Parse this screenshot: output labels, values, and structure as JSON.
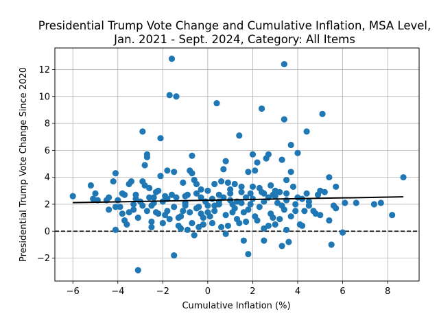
{
  "chart_data": {
    "type": "scatter",
    "title_lines": [
      "Presidential Trump Vote Change and Cumulative Inflation, MSA Level,",
      "Jan. 2021 - Sept. 2024, Category: All Items"
    ],
    "xlabel": "Cumulative Inflation (%)",
    "ylabel": "Presidential Trump Vote Change Since 2020",
    "xlim": [
      -6.8,
      9.4
    ],
    "ylim": [
      -3.7,
      13.6
    ],
    "x_ticks": [
      -6,
      -4,
      -2,
      0,
      2,
      4,
      6,
      8
    ],
    "x_tick_labels": [
      "−6",
      "−4",
      "−2",
      "0",
      "2",
      "4",
      "6",
      "8"
    ],
    "y_ticks": [
      -2,
      0,
      2,
      4,
      6,
      8,
      10,
      12
    ],
    "y_tick_labels": [
      "−2",
      "0",
      "2",
      "4",
      "6",
      "8",
      "10",
      "12"
    ],
    "grid": true,
    "point_color": "#1f77b4",
    "trend_line": {
      "x": [
        -6.0,
        8.7
      ],
      "y": [
        2.12,
        2.55
      ],
      "color": "#000000"
    },
    "reference_line": {
      "y": 0,
      "style": "dashed",
      "color": "#000000"
    },
    "points": [
      [
        -6.0,
        2.6
      ],
      [
        -5.2,
        3.4
      ],
      [
        -5.1,
        2.4
      ],
      [
        -5.0,
        2.8
      ],
      [
        -4.9,
        2.3
      ],
      [
        -4.5,
        2.3
      ],
      [
        -4.4,
        1.6
      ],
      [
        -4.4,
        2.5
      ],
      [
        -4.2,
        3.7
      ],
      [
        -4.1,
        4.3
      ],
      [
        -4.1,
        1.8
      ],
      [
        -4.1,
        0.1
      ],
      [
        -3.9,
        1.8
      ],
      [
        -3.8,
        2.8
      ],
      [
        -3.7,
        2.7
      ],
      [
        -3.7,
        0.8
      ],
      [
        -3.6,
        0.5
      ],
      [
        -3.5,
        3.5
      ],
      [
        -3.4,
        3.7
      ],
      [
        -3.3,
        1.6
      ],
      [
        -3.2,
        2.4
      ],
      [
        -3.2,
        2.7
      ],
      [
        -3.1,
        1.0
      ],
      [
        -3.1,
        -2.9
      ],
      [
        -2.9,
        3.7
      ],
      [
        -2.9,
        7.4
      ],
      [
        -2.9,
        1.9
      ],
      [
        -2.8,
        3.4
      ],
      [
        -2.8,
        4.9
      ],
      [
        -2.7,
        5.7
      ],
      [
        -2.7,
        5.5
      ],
      [
        -2.6,
        2.5
      ],
      [
        -2.6,
        3.2
      ],
      [
        -2.5,
        0.7
      ],
      [
        -2.5,
        0.3
      ],
      [
        -2.4,
        2.5
      ],
      [
        -2.3,
        1.4
      ],
      [
        -2.2,
        3.0
      ],
      [
        -2.1,
        4.1
      ],
      [
        -2.1,
        6.9
      ],
      [
        -2.0,
        0.6
      ],
      [
        -1.9,
        1.2
      ],
      [
        -1.8,
        4.5
      ],
      [
        -1.8,
        1.5
      ],
      [
        -1.7,
        10.1
      ],
      [
        -1.6,
        12.8
      ],
      [
        -1.6,
        2.7
      ],
      [
        -1.5,
        4.4
      ],
      [
        -1.5,
        -1.8
      ],
      [
        -1.4,
        10.0
      ],
      [
        -1.4,
        2.5
      ],
      [
        -1.3,
        1.0
      ],
      [
        -1.2,
        0.2
      ],
      [
        -1.1,
        3.6
      ],
      [
        -1.0,
        1.9
      ],
      [
        -0.9,
        2.7
      ],
      [
        -0.8,
        1.4
      ],
      [
        -0.8,
        4.5
      ],
      [
        -0.7,
        5.6
      ],
      [
        -0.7,
        4.3
      ],
      [
        -0.6,
        3.8
      ],
      [
        -0.5,
        3.5
      ],
      [
        -0.4,
        1.8
      ],
      [
        -0.3,
        1.3
      ],
      [
        -0.3,
        3.1
      ],
      [
        -0.2,
        0.5
      ],
      [
        -0.1,
        2.2
      ],
      [
        0.0,
        1.4
      ],
      [
        0.1,
        1.1
      ],
      [
        0.2,
        2.4
      ],
      [
        0.3,
        1.9
      ],
      [
        0.3,
        3.5
      ],
      [
        0.4,
        9.5
      ],
      [
        0.5,
        2.2
      ],
      [
        0.6,
        3.7
      ],
      [
        0.6,
        0.3
      ],
      [
        0.7,
        4.6
      ],
      [
        0.8,
        5.2
      ],
      [
        0.8,
        -0.2
      ],
      [
        0.9,
        3.6
      ],
      [
        1.0,
        2.8
      ],
      [
        1.1,
        1.4
      ],
      [
        1.2,
        3.5
      ],
      [
        1.3,
        2.2
      ],
      [
        1.4,
        7.1
      ],
      [
        1.4,
        0.6
      ],
      [
        1.5,
        3.3
      ],
      [
        1.6,
        -0.7
      ],
      [
        1.7,
        0.7
      ],
      [
        1.7,
        2.5
      ],
      [
        1.8,
        4.4
      ],
      [
        1.8,
        -1.7
      ],
      [
        1.9,
        2.0
      ],
      [
        2.0,
        5.7
      ],
      [
        2.1,
        4.5
      ],
      [
        2.1,
        1.1
      ],
      [
        2.2,
        5.1
      ],
      [
        2.3,
        3.2
      ],
      [
        2.4,
        9.1
      ],
      [
        2.5,
        0.2
      ],
      [
        2.5,
        -0.7
      ],
      [
        2.6,
        5.4
      ],
      [
        2.7,
        5.7
      ],
      [
        2.7,
        2.5
      ],
      [
        2.8,
        3.4
      ],
      [
        2.9,
        1.0
      ],
      [
        3.0,
        0.5
      ],
      [
        3.1,
        2.1
      ],
      [
        3.2,
        2.9
      ],
      [
        3.3,
        5.3
      ],
      [
        3.3,
        -1.1
      ],
      [
        3.4,
        8.3
      ],
      [
        3.4,
        12.4
      ],
      [
        3.5,
        0.1
      ],
      [
        3.5,
        3.8
      ],
      [
        3.6,
        -0.8
      ],
      [
        3.7,
        4.4
      ],
      [
        3.7,
        6.4
      ],
      [
        3.8,
        3.3
      ],
      [
        3.9,
        1.5
      ],
      [
        4.0,
        5.8
      ],
      [
        4.1,
        0.5
      ],
      [
        4.2,
        0.4
      ],
      [
        4.3,
        1.5
      ],
      [
        4.4,
        7.4
      ],
      [
        4.4,
        2.8
      ],
      [
        4.5,
        2.2
      ],
      [
        4.7,
        1.5
      ],
      [
        4.9,
        2.7
      ],
      [
        5.0,
        3.0
      ],
      [
        5.0,
        1.2
      ],
      [
        5.1,
        8.7
      ],
      [
        5.2,
        2.9
      ],
      [
        5.4,
        4.0
      ],
      [
        5.4,
        0.8
      ],
      [
        5.5,
        -1.0
      ],
      [
        5.6,
        1.9
      ],
      [
        5.7,
        3.3
      ],
      [
        5.7,
        1.7
      ],
      [
        6.0,
        -0.1
      ],
      [
        6.1,
        2.1
      ],
      [
        6.6,
        2.1
      ],
      [
        7.4,
        2.0
      ],
      [
        7.7,
        2.1
      ],
      [
        8.2,
        1.2
      ],
      [
        8.7,
        4.0
      ],
      [
        -1.0,
        2.1
      ],
      [
        -0.5,
        1.7
      ],
      [
        0.0,
        1.9
      ],
      [
        0.5,
        2.0
      ],
      [
        1.0,
        2.3
      ],
      [
        1.5,
        2.1
      ],
      [
        2.0,
        2.4
      ],
      [
        2.5,
        2.2
      ],
      [
        3.0,
        2.6
      ],
      [
        3.5,
        2.3
      ],
      [
        -1.2,
        1.1
      ],
      [
        -0.7,
        0.6
      ],
      [
        -0.2,
        1.0
      ],
      [
        0.8,
        1.2
      ],
      [
        1.3,
        0.9
      ],
      [
        1.8,
        1.6
      ],
      [
        2.3,
        1.8
      ],
      [
        2.8,
        1.3
      ],
      [
        3.3,
        1.9
      ],
      [
        4.0,
        2.5
      ],
      [
        -2.5,
        1.9
      ],
      [
        -2.0,
        2.2
      ],
      [
        -1.5,
        1.8
      ],
      [
        -1.0,
        2.6
      ],
      [
        -0.5,
        2.8
      ],
      [
        0.0,
        3.0
      ],
      [
        0.5,
        2.7
      ],
      [
        1.0,
        3.1
      ],
      [
        1.5,
        2.9
      ],
      [
        2.0,
        3.3
      ],
      [
        2.5,
        2.8
      ],
      [
        3.0,
        3.0
      ],
      [
        3.5,
        2.8
      ],
      [
        4.5,
        1.9
      ],
      [
        -3.0,
        2.2
      ],
      [
        -2.7,
        1.5
      ],
      [
        -2.2,
        1.3
      ],
      [
        -1.7,
        0.9
      ],
      [
        -1.3,
        0.4
      ],
      [
        -0.9,
        0.1
      ],
      [
        -0.6,
        -0.3
      ],
      [
        -0.4,
        0.3
      ],
      [
        0.2,
        0.6
      ],
      [
        0.9,
        0.4
      ],
      [
        1.2,
        1.7
      ],
      [
        1.6,
        1.4
      ],
      [
        2.2,
        0.8
      ],
      [
        2.7,
        0.4
      ],
      [
        3.2,
        0.9
      ],
      [
        3.7,
        1.1
      ],
      [
        -3.5,
        1.4
      ],
      [
        -3.3,
        2.0
      ],
      [
        -2.3,
        2.9
      ],
      [
        -1.9,
        2.6
      ],
      [
        -1.1,
        1.5
      ],
      [
        -0.3,
        2.5
      ],
      [
        0.3,
        1.5
      ],
      [
        0.7,
        2.5
      ],
      [
        1.1,
        2.0
      ],
      [
        1.9,
        2.8
      ],
      [
        2.4,
        2.9
      ],
      [
        2.9,
        2.7
      ],
      [
        3.4,
        1.6
      ],
      [
        3.9,
        2.0
      ],
      [
        4.2,
        2.4
      ],
      [
        4.8,
        1.3
      ],
      [
        -4.0,
        2.3
      ],
      [
        -3.8,
        1.3
      ],
      [
        -2.4,
        2.1
      ],
      [
        -1.8,
        2.4
      ]
    ]
  }
}
